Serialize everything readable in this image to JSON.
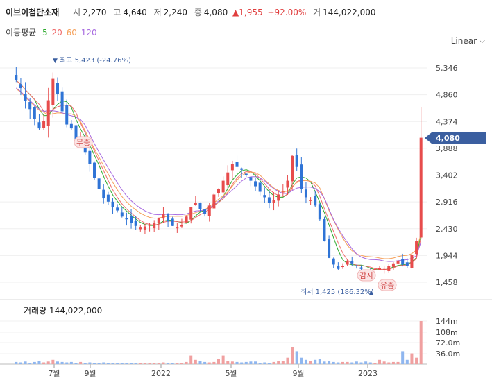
{
  "header": {
    "name": "이브이첨단소재",
    "open_label": "시",
    "open": "2,270",
    "high_label": "고",
    "high": "4,640",
    "low_label": "저",
    "low": "2,240",
    "close_label": "종",
    "close": "4,080",
    "change": "▲1,955",
    "change_pct": "+92.00%",
    "volume_label": "거",
    "volume": "144,022,000"
  },
  "ma_legend": {
    "label": "이동평균",
    "p5": "5",
    "p20": "20",
    "p60": "60",
    "p120": "120",
    "colors": {
      "p5": "#2eaa2e",
      "p20": "#f06c6c",
      "p60": "#f5a05a",
      "p120": "#a86be0"
    }
  },
  "scale_toggle": "Linear",
  "price_label": "4,080",
  "annotations": {
    "max": "최고 5,423 (-24.76%)",
    "min": "최저 1,425 (186.32%)",
    "events": [
      "무증",
      "감자",
      "유증"
    ]
  },
  "volume_title": "거래량 144,022,000",
  "colors": {
    "up": "#e74c4c",
    "down": "#2f74d6",
    "price_tag": "#3b5fa0"
  },
  "chart_data": {
    "type": "candlestick",
    "x_ticks": [
      "7월",
      "9월",
      "2022",
      "5월",
      "9월",
      "2023"
    ],
    "y_ticks": [
      1458,
      1944,
      2430,
      2916,
      3402,
      3888,
      4374,
      4860,
      5346
    ],
    "volume_ticks": [
      "144m",
      "108m",
      "72.0m",
      "36.0m"
    ],
    "series": [
      {
        "name": "5",
        "color": "#2eaa2e"
      },
      {
        "name": "20",
        "color": "#f06c6c"
      },
      {
        "name": "60",
        "color": "#f5a05a"
      },
      {
        "name": "120",
        "color": "#a86be0"
      }
    ],
    "candles_close": [
      5120,
      4980,
      4750,
      4600,
      4420,
      4250,
      4390,
      4760,
      5150,
      4880,
      4560,
      4320,
      4250,
      4050,
      4000,
      3820,
      3600,
      3350,
      3150,
      2980,
      2920,
      2820,
      2760,
      2650,
      2600,
      2540,
      2480,
      2450,
      2470,
      2500,
      2540,
      2620,
      2700,
      2560,
      2480,
      2450,
      2500,
      2650,
      2820,
      2900,
      2780,
      2700,
      2850,
      3050,
      3150,
      3300,
      3450,
      3600,
      3550,
      3500,
      3400,
      3300,
      3200,
      3100,
      3000,
      2900,
      2950,
      3050,
      3100,
      3300,
      3750,
      3550,
      3150,
      3000,
      2950,
      2850,
      2600,
      2200,
      1900,
      1780,
      1700,
      1750,
      1850,
      1800,
      1750,
      1700,
      1650,
      1650,
      1700,
      1720,
      1700,
      1750,
      1800,
      1850,
      1780,
      1750,
      1950,
      2200,
      4080
    ],
    "volume_relative": [
      0.05,
      0.04,
      0.06,
      0.03,
      0.05,
      0.08,
      0.04,
      0.06,
      0.1,
      0.06,
      0.05,
      0.04,
      0.05,
      0.03,
      0.05,
      0.03,
      0.04,
      0.03,
      0.02,
      0.04,
      0.03,
      0.02,
      0.02,
      0.03,
      0.02,
      0.02,
      0.02,
      0.02,
      0.02,
      0.03,
      0.02,
      0.03,
      0.04,
      0.02,
      0.02,
      0.02,
      0.03,
      0.05,
      0.2,
      0.1,
      0.08,
      0.05,
      0.04,
      0.05,
      0.12,
      0.2,
      0.08,
      0.06,
      0.05,
      0.04,
      0.05,
      0.06,
      0.06,
      0.03,
      0.04,
      0.03,
      0.05,
      0.08,
      0.08,
      0.15,
      0.4,
      0.3,
      0.15,
      0.1,
      0.07,
      0.1,
      0.12,
      0.06,
      0.08,
      0.05,
      0.04,
      0.05,
      0.05,
      0.04,
      0.06,
      0.04,
      0.06,
      0.04,
      0.03,
      0.1,
      0.06,
      0.04,
      0.05,
      0.05,
      0.3,
      0.1,
      0.25,
      0.15,
      1.0
    ]
  }
}
